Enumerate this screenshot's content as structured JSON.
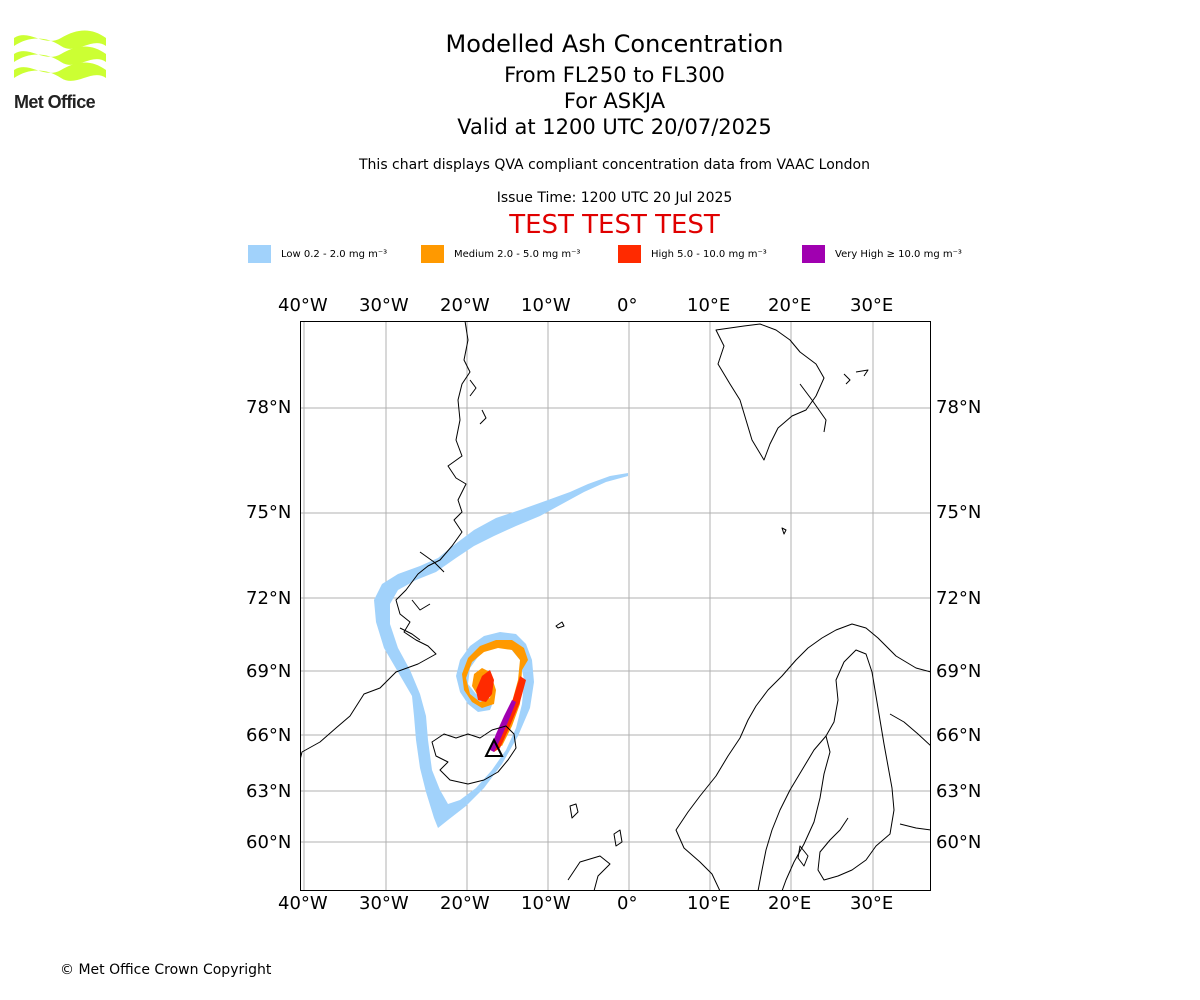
{
  "brand": {
    "logo_text": "Met Office",
    "logo_color": "#ccff33"
  },
  "header": {
    "title": "Modelled Ash Concentration",
    "levels": "From FL250 to FL300",
    "volcano": "For ASKJA",
    "valid": "Valid at 1200 UTC 20/07/2025",
    "description": "This chart displays QVA compliant concentration data from VAAC London",
    "issue_time": "Issue Time: 1200 UTC 20 Jul 2025",
    "test_banner": "TEST TEST TEST"
  },
  "legend": [
    {
      "label": "Low 0.2 - 2.0 mg m⁻³",
      "color": "#a1d2fb"
    },
    {
      "label": "Medium 2.0 - 5.0 mg m⁻³",
      "color": "#ff9900"
    },
    {
      "label": "High 5.0 - 10.0 mg m⁻³",
      "color": "#ff2a00"
    },
    {
      "label": "Very High ≥ 10.0 mg m⁻³",
      "color": "#a000b0"
    }
  ],
  "map": {
    "lon_labels": [
      "40°W",
      "30°W",
      "20°W",
      "10°W",
      "0°",
      "10°E",
      "20°E",
      "30°E"
    ],
    "lat_labels": [
      "78°N",
      "75°N",
      "72°N",
      "69°N",
      "66°N",
      "63°N",
      "60°N"
    ],
    "volcano_marker": "triangle"
  },
  "footer": {
    "copyright": "© Met Office Crown Copyright"
  }
}
